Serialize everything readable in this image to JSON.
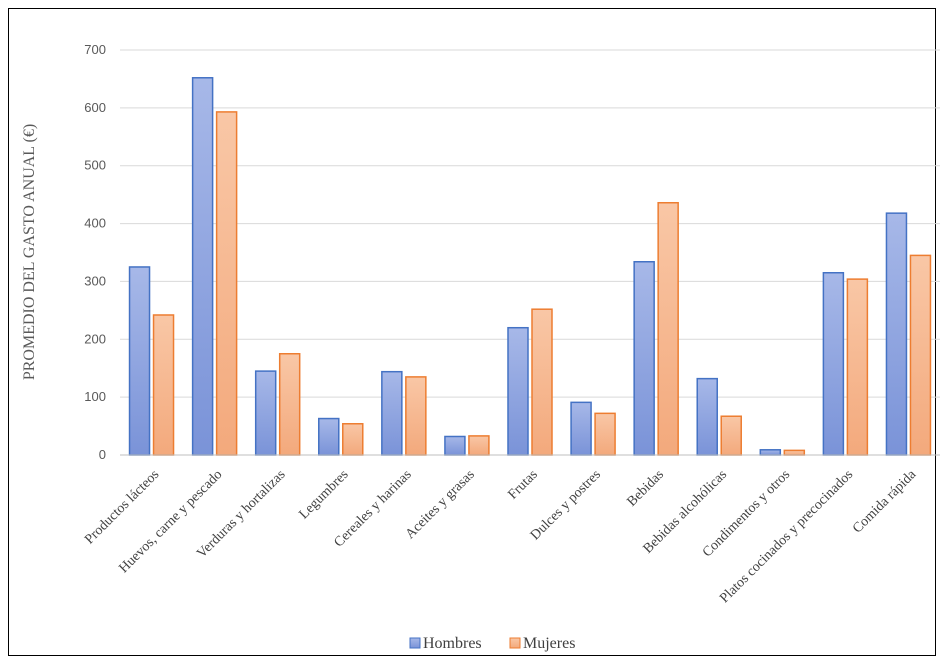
{
  "chart_data": {
    "type": "bar",
    "ylabel": "PROMEDIO DEL GASTO ANUAL (€)",
    "ylim": [
      0,
      700
    ],
    "yticks": [
      0,
      100,
      200,
      300,
      400,
      500,
      600,
      700
    ],
    "grid": "horizontal",
    "legend_position": "bottom",
    "categories": [
      "Productos lácteos",
      "Huevos, carne y pescado",
      "Verduras y hortalizas",
      "Legumbres",
      "Cereales y harinas",
      "Aceites y grasas",
      "Frutas",
      "Dulces y postres",
      "Bebidas",
      "Bebidas alcohólicas",
      "Condimentos y otros",
      "Platos cocinados y precocinados",
      "Comida rápida"
    ],
    "series": [
      {
        "name": "Hombres",
        "color": "#7F96D8",
        "stroke": "#4472C4",
        "values": [
          325,
          652,
          145,
          63,
          144,
          32,
          220,
          91,
          334,
          132,
          9,
          315,
          418
        ]
      },
      {
        "name": "Mujeres",
        "color": "#F4B183",
        "stroke": "#ED7D31",
        "values": [
          242,
          593,
          175,
          54,
          135,
          33,
          252,
          72,
          436,
          67,
          8,
          304,
          345
        ]
      }
    ]
  }
}
